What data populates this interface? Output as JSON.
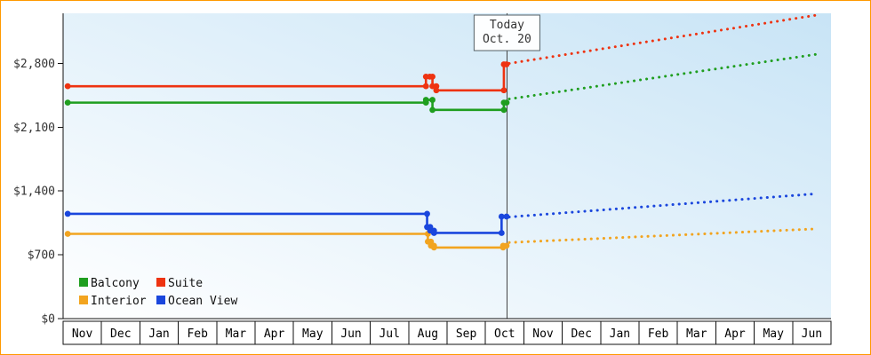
{
  "frame": {
    "border_color": "#ff9900"
  },
  "chart_data": {
    "type": "line",
    "title": "",
    "xlabel": "",
    "ylabel": "",
    "ylim": [
      0,
      3350
    ],
    "x_range": [
      0,
      20
    ],
    "grid": false,
    "legend_position": "bottom-left",
    "yticks": [
      {
        "value": 0,
        "label": "$0"
      },
      {
        "value": 700,
        "label": "$700"
      },
      {
        "value": 1400,
        "label": "$1,400"
      },
      {
        "value": 2100,
        "label": "$2,100"
      },
      {
        "value": 2800,
        "label": "$2,800"
      }
    ],
    "months": [
      "Nov",
      "Dec",
      "Jan",
      "Feb",
      "Mar",
      "Apr",
      "May",
      "Jun",
      "Jul",
      "Aug",
      "Sep",
      "Oct",
      "Nov",
      "Dec",
      "Jan",
      "Feb",
      "Mar",
      "Apr",
      "May",
      "Jun"
    ],
    "today": {
      "x": 11.56,
      "label_line1": "Today",
      "label_line2": "Oct. 20"
    },
    "series": [
      {
        "name": "Balcony",
        "color": "#1f9e1f",
        "solid": [
          [
            0.12,
            2370
          ],
          [
            9.45,
            2370
          ],
          [
            9.45,
            2400
          ],
          [
            9.62,
            2400
          ],
          [
            9.62,
            2290
          ],
          [
            11.48,
            2290
          ],
          [
            11.48,
            2370
          ],
          [
            11.55,
            2370
          ]
        ],
        "dashed": [
          [
            11.62,
            2410
          ],
          [
            19.62,
            2900
          ]
        ]
      },
      {
        "name": "Suite",
        "color": "#ee3311",
        "solid": [
          [
            0.12,
            2550
          ],
          [
            9.45,
            2550
          ],
          [
            9.45,
            2655
          ],
          [
            9.55,
            2655
          ],
          [
            9.62,
            2655
          ],
          [
            9.62,
            2550
          ],
          [
            9.72,
            2550
          ],
          [
            9.72,
            2505
          ],
          [
            11.48,
            2505
          ],
          [
            11.48,
            2790
          ],
          [
            11.55,
            2790
          ]
        ],
        "dashed": [
          [
            11.62,
            2800
          ],
          [
            19.62,
            3330
          ]
        ]
      },
      {
        "name": "Interior",
        "color": "#f2a41f",
        "solid": [
          [
            0.12,
            930
          ],
          [
            9.5,
            930
          ],
          [
            9.5,
            845
          ],
          [
            9.58,
            845
          ],
          [
            9.58,
            800
          ],
          [
            9.66,
            800
          ],
          [
            9.66,
            780
          ],
          [
            11.46,
            780
          ],
          [
            11.46,
            800
          ],
          [
            11.55,
            800
          ]
        ],
        "dashed": [
          [
            11.62,
            835
          ],
          [
            19.62,
            985
          ]
        ]
      },
      {
        "name": "Ocean View",
        "color": "#1a46dd",
        "solid": [
          [
            0.12,
            1150
          ],
          [
            9.48,
            1150
          ],
          [
            9.48,
            1005
          ],
          [
            9.56,
            1005
          ],
          [
            9.56,
            965
          ],
          [
            9.66,
            965
          ],
          [
            9.66,
            940
          ],
          [
            11.42,
            940
          ],
          [
            11.42,
            1120
          ],
          [
            11.55,
            1120
          ]
        ],
        "dashed": [
          [
            11.62,
            1115
          ],
          [
            19.62,
            1370
          ]
        ]
      }
    ],
    "legend": {
      "rows": [
        [
          "Balcony",
          "Suite"
        ],
        [
          "Interior",
          "Ocean View"
        ]
      ]
    },
    "colors": {
      "plot_bg_top": "#c8e4f6",
      "plot_bg_bottom": "#ffffff",
      "axis": "#111111",
      "today_line": "#444444",
      "today_box_border": "#556066",
      "today_box_fill": "#fdfeff",
      "ytick_text": "#333333",
      "month_text": "#000000",
      "legend_text": "#111111",
      "frame_border": "#ff9900"
    }
  }
}
